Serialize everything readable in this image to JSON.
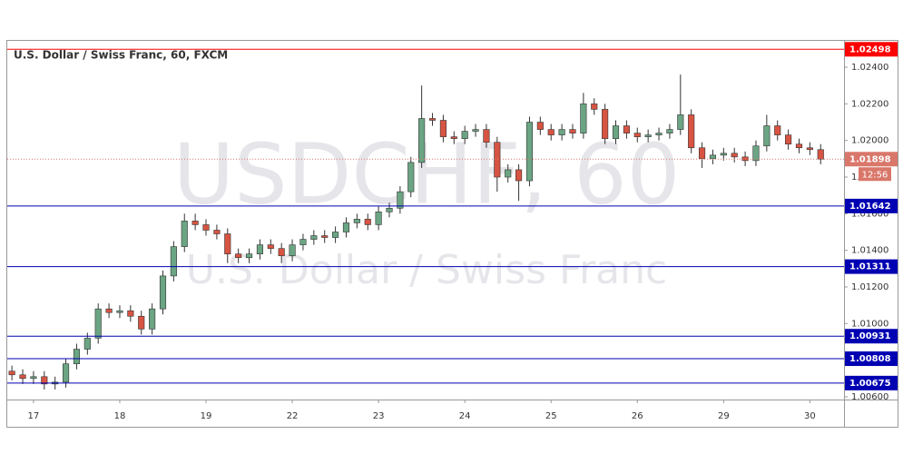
{
  "chart_data": {
    "type": "candlestick",
    "title": "U.S. Dollar / Swiss Franc, 60, FXCM",
    "watermark": "USDCHF, 60",
    "watermark_subtitle": "U.S. Dollar / Swiss Franc",
    "x": [
      -6,
      -3,
      0,
      3,
      6,
      9,
      12,
      15,
      18,
      21,
      24,
      27,
      30,
      33,
      36,
      39,
      42,
      45,
      48,
      51,
      54,
      57,
      60,
      63,
      66,
      69,
      72,
      75,
      78,
      81,
      84,
      87,
      90,
      93,
      96,
      99,
      102,
      105,
      108,
      111,
      114,
      117,
      120,
      123,
      126,
      129,
      132,
      135,
      138,
      141,
      144,
      147,
      150,
      153,
      156,
      159,
      162,
      165,
      168,
      171,
      174,
      177,
      180,
      183,
      186,
      189,
      192,
      195,
      198,
      201,
      204,
      207,
      210,
      213,
      216,
      219
    ],
    "series": [
      {
        "up_color": "#6ba583",
        "down_color": "#d75442",
        "open": [
          1.0074,
          1.0072,
          1.007,
          1.0071,
          1.0067,
          1.0068,
          1.0078,
          1.0086,
          1.0092,
          1.0108,
          1.0106,
          1.0107,
          1.0104,
          1.0097,
          1.0108,
          1.0126,
          1.0142,
          1.0156,
          1.0154,
          1.0151,
          1.0149,
          1.0138,
          1.0136,
          1.0138,
          1.0143,
          1.0141,
          1.0137,
          1.0143,
          1.0146,
          1.0148,
          1.0147,
          1.015,
          1.0155,
          1.0157,
          1.0154,
          1.0161,
          1.0163,
          1.0172,
          1.0188,
          1.0212,
          1.0211,
          1.0202,
          1.0201,
          1.0205,
          1.0206,
          1.0199,
          1.018,
          1.0184,
          1.0178,
          1.021,
          1.0206,
          1.0203,
          1.0206,
          1.0204,
          1.022,
          1.0217,
          1.0201,
          1.0208,
          1.0204,
          1.0202,
          1.0203,
          1.0204,
          1.0206,
          1.0214,
          1.0196,
          1.019,
          1.0192,
          1.0193,
          1.0191,
          1.0189,
          1.0197,
          1.0208,
          1.0203,
          1.0198,
          1.0196,
          1.0195
        ],
        "high": [
          1.0077,
          1.0075,
          1.0074,
          1.0074,
          1.0071,
          1.0081,
          1.0089,
          1.0095,
          1.0111,
          1.0111,
          1.011,
          1.011,
          1.0107,
          1.0111,
          1.0129,
          1.0145,
          1.016,
          1.016,
          1.0157,
          1.0154,
          1.0152,
          1.0141,
          1.0141,
          1.0146,
          1.0146,
          1.0144,
          1.0146,
          1.0149,
          1.0151,
          1.0151,
          1.0153,
          1.0158,
          1.016,
          1.016,
          1.0164,
          1.0166,
          1.0175,
          1.0191,
          1.023,
          1.0215,
          1.0214,
          1.0205,
          1.0208,
          1.0209,
          1.0209,
          1.0202,
          1.0187,
          1.0187,
          1.0213,
          1.0213,
          1.0209,
          1.0209,
          1.0209,
          1.0226,
          1.0223,
          1.022,
          1.0211,
          1.0211,
          1.0207,
          1.0206,
          1.0207,
          1.0209,
          1.0236,
          1.0217,
          1.0199,
          1.0195,
          1.0196,
          1.0196,
          1.0194,
          1.02,
          1.0214,
          1.0211,
          1.0206,
          1.0201,
          1.0199,
          1.0198
        ],
        "low": [
          1.0069,
          1.0067,
          1.0067,
          1.0064,
          1.0064,
          1.0065,
          1.0075,
          1.0083,
          1.0089,
          1.0103,
          1.0103,
          1.0101,
          1.0094,
          1.0094,
          1.0105,
          1.0123,
          1.0139,
          1.0151,
          1.0148,
          1.0146,
          1.0133,
          1.0133,
          1.0133,
          1.0135,
          1.0138,
          1.0133,
          1.0134,
          1.014,
          1.0143,
          1.0144,
          1.0144,
          1.0147,
          1.0152,
          1.0151,
          1.0151,
          1.0158,
          1.016,
          1.0169,
          1.0185,
          1.0208,
          1.0199,
          1.0198,
          1.0198,
          1.0202,
          1.0196,
          1.0172,
          1.0177,
          1.0167,
          1.0175,
          1.0203,
          1.02,
          1.02,
          1.0201,
          1.0201,
          1.0214,
          1.0198,
          1.0198,
          1.0201,
          1.0199,
          1.0199,
          1.02,
          1.0201,
          1.0203,
          1.0193,
          1.0185,
          1.0187,
          1.0189,
          1.0188,
          1.0186,
          1.0186,
          1.0194,
          1.02,
          1.0195,
          1.0193,
          1.0192,
          1.0187
        ],
        "close": [
          1.0072,
          1.007,
          1.0071,
          1.0067,
          1.0068,
          1.0078,
          1.0086,
          1.0092,
          1.0108,
          1.0106,
          1.0107,
          1.0104,
          1.0097,
          1.0108,
          1.0126,
          1.0142,
          1.0156,
          1.0154,
          1.0151,
          1.0149,
          1.0138,
          1.0136,
          1.0138,
          1.0143,
          1.0141,
          1.0137,
          1.0143,
          1.0146,
          1.0148,
          1.0147,
          1.015,
          1.0155,
          1.0157,
          1.0154,
          1.0161,
          1.0163,
          1.0172,
          1.0188,
          1.0212,
          1.0211,
          1.0202,
          1.0201,
          1.0205,
          1.0206,
          1.0199,
          1.018,
          1.0184,
          1.0178,
          1.021,
          1.0206,
          1.0203,
          1.0206,
          1.0204,
          1.022,
          1.0217,
          1.0201,
          1.0208,
          1.0204,
          1.0202,
          1.0203,
          1.0204,
          1.0206,
          1.0214,
          1.0196,
          1.019,
          1.0192,
          1.0193,
          1.0191,
          1.0189,
          1.0197,
          1.0208,
          1.0203,
          1.0198,
          1.0196,
          1.0195,
          1.01898
        ]
      }
    ],
    "xlim": [
      -7.3,
      225.5
    ],
    "xticks": [
      {
        "value": 0,
        "label": "17"
      },
      {
        "value": 24,
        "label": "18"
      },
      {
        "value": 48,
        "label": "19"
      },
      {
        "value": 72,
        "label": "22"
      },
      {
        "value": 96,
        "label": "23"
      },
      {
        "value": 120,
        "label": "24"
      },
      {
        "value": 144,
        "label": "25"
      },
      {
        "value": 168,
        "label": "26"
      },
      {
        "value": 192,
        "label": "29"
      },
      {
        "value": 216,
        "label": "30"
      }
    ],
    "ylim": [
      1.00585,
      1.02544
    ],
    "yticks": [
      {
        "value": 1.006,
        "label": "1.00600"
      },
      {
        "value": 1.008,
        "label": "1.00800"
      },
      {
        "value": 1.01,
        "label": "1.01000"
      },
      {
        "value": 1.012,
        "label": "1.01200"
      },
      {
        "value": 1.014,
        "label": "1.01400"
      },
      {
        "value": 1.016,
        "label": "1.01600"
      },
      {
        "value": 1.018,
        "label": "1.01800"
      },
      {
        "value": 1.02,
        "label": "1.02000"
      },
      {
        "value": 1.022,
        "label": "1.02200"
      },
      {
        "value": 1.024,
        "label": "1.02400"
      }
    ],
    "levels": [
      {
        "value": 1.02498,
        "color": "#ff0000"
      },
      {
        "value": 1.01642,
        "color": "#0000b3"
      },
      {
        "value": 1.01311,
        "color": "#0000b3"
      },
      {
        "value": 1.00931,
        "color": "#0000b3"
      },
      {
        "value": 1.00808,
        "color": "#0000b3"
      },
      {
        "value": 1.00675,
        "color": "#0000b3"
      }
    ],
    "last_price": {
      "value": 1.01898,
      "color": "#d9776a",
      "countdown": "12:56"
    }
  }
}
